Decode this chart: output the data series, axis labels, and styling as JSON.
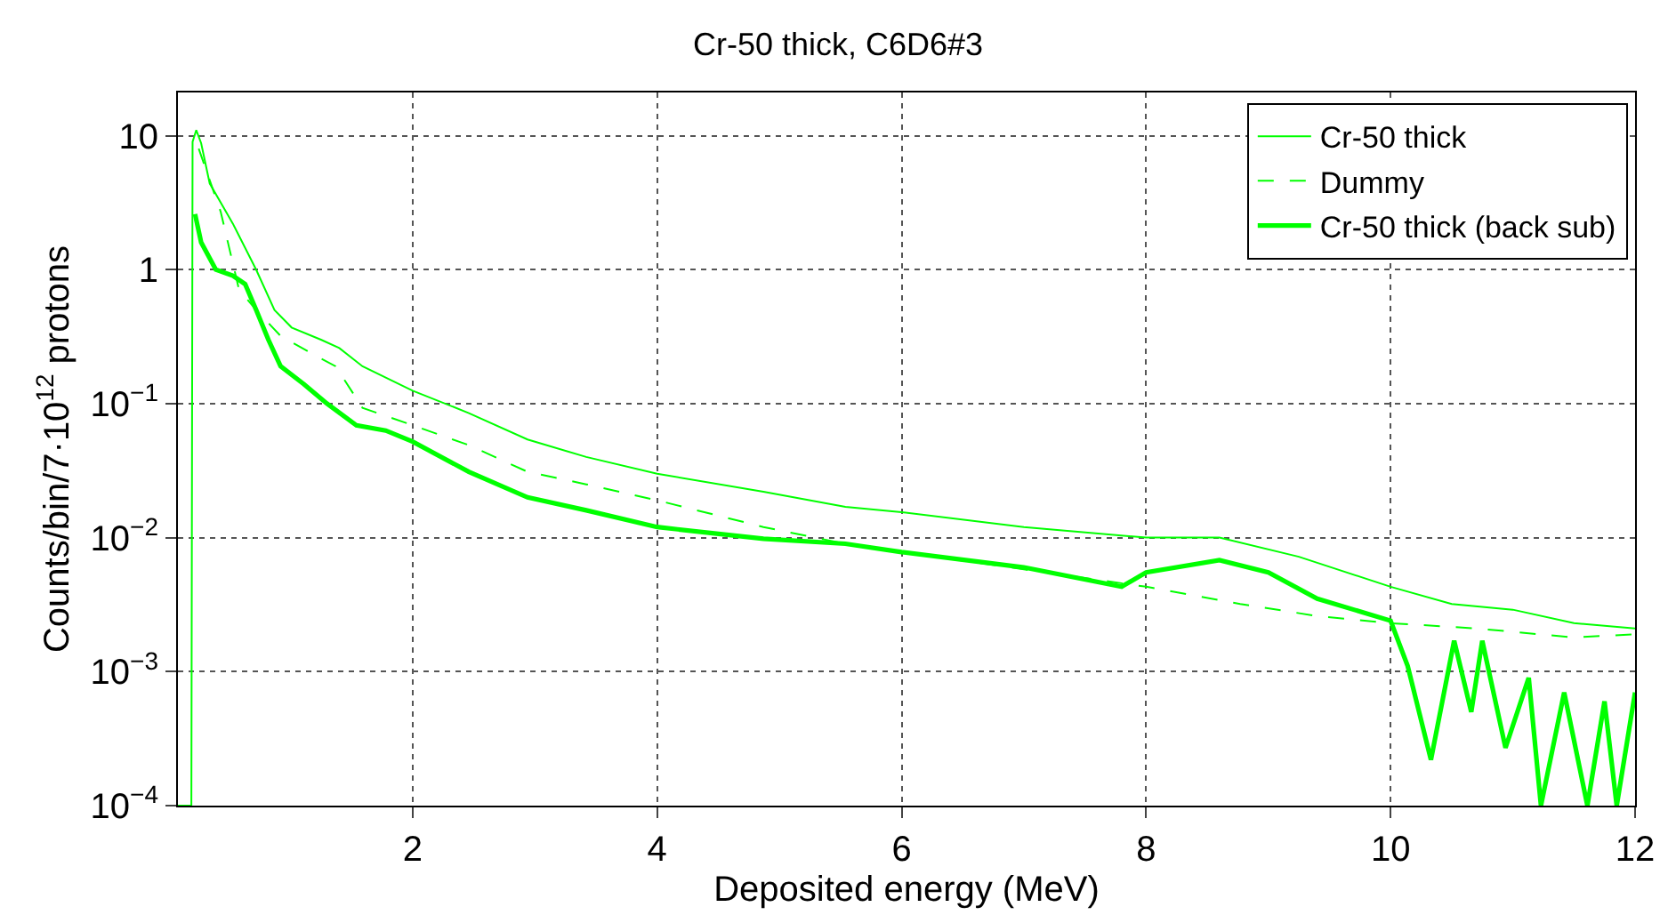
{
  "chart_data": {
    "type": "line",
    "title": "Cr-50 thick, C6D6#3",
    "xlabel": "Deposited energy (MeV)",
    "ylabel": "Counts/bin/7·10$^{12}$ protons",
    "log": "y",
    "grid": true,
    "legend": "top right",
    "marker": "none",
    "xlim": [
      0.08,
      12
    ],
    "xticks": [
      2,
      4,
      6,
      8,
      10,
      12
    ],
    "ylim": [
      0.0001,
      21
    ],
    "yticks": [
      {
        "value": 0.0001,
        "label": "10$^{−4}$"
      },
      {
        "value": 0.001,
        "label": "10$^{−3}$"
      },
      {
        "value": 0.01,
        "label": "10$^{−2}$"
      },
      {
        "value": 0.1,
        "label": "10$^{−1}$"
      },
      1,
      10
    ],
    "series": [
      {
        "name": "Cr-50 thick",
        "color": "#00ff00",
        "line_style": "solid",
        "x": [
          0.08,
          0.19,
          0.2,
          0.23,
          0.27,
          0.34,
          0.53,
          0.72,
          0.87,
          1.01,
          1.25,
          1.4,
          1.59,
          2.0,
          2.46,
          2.94,
          3.42,
          4.0,
          4.87,
          5.54,
          6.0,
          7.0,
          8.0,
          8.6,
          9.25,
          10.0,
          10.5,
          11.0,
          11.5,
          12.0
        ],
        "values": [
          0.0001,
          0.0001,
          9,
          11,
          8.8,
          4.4,
          2.2,
          1.0,
          0.5,
          0.37,
          0.3,
          0.26,
          0.19,
          0.125,
          0.085,
          0.054,
          0.04,
          0.03,
          0.022,
          0.017,
          0.0155,
          0.012,
          0.01,
          0.01,
          0.0072,
          0.0043,
          0.0032,
          0.0029,
          0.0023,
          0.0021
        ]
      },
      {
        "name": "Dummy",
        "color": "#00ff00",
        "line_style": "dashed",
        "x": [
          0.25,
          0.43,
          0.58,
          0.72,
          0.92,
          1.2,
          1.37,
          1.59,
          2.0,
          2.46,
          2.94,
          3.42,
          4.0,
          4.87,
          5.54,
          6.0,
          7.0,
          8.0,
          8.77,
          9.4,
          10.0,
          10.7,
          11.5,
          12.0
        ],
        "values": [
          8,
          2.7,
          0.71,
          0.5,
          0.32,
          0.23,
          0.19,
          0.093,
          0.069,
          0.049,
          0.031,
          0.025,
          0.019,
          0.012,
          0.009,
          0.0078,
          0.0058,
          0.0043,
          0.0032,
          0.0026,
          0.0023,
          0.0021,
          0.0018,
          0.0019
        ]
      },
      {
        "name": "Cr-50 thick (back sub)",
        "color": "#00ff00",
        "line_style": "solid",
        "x": [
          0.22,
          0.27,
          0.39,
          0.53,
          0.63,
          0.72,
          0.82,
          0.92,
          1.11,
          1.3,
          1.54,
          1.78,
          2.0,
          2.46,
          2.94,
          3.42,
          4.0,
          4.87,
          5.54,
          6.0,
          7.0,
          7.8,
          8.0,
          8.6,
          9.0,
          9.4,
          10.0,
          10.14,
          10.33,
          10.52,
          10.66,
          10.75,
          10.94,
          11.13,
          11.23,
          11.42,
          11.61,
          11.75,
          11.85,
          12.0
        ],
        "values": [
          2.6,
          1.6,
          1.0,
          0.9,
          0.78,
          0.5,
          0.3,
          0.19,
          0.14,
          0.1,
          0.069,
          0.063,
          0.052,
          0.031,
          0.02,
          0.016,
          0.012,
          0.0098,
          0.009,
          0.0078,
          0.006,
          0.0043,
          0.0055,
          0.0068,
          0.0055,
          0.0035,
          0.0024,
          0.0011,
          0.00022,
          0.0017,
          0.0005,
          0.0017,
          0.00027,
          0.0009,
          0.0001,
          0.0007,
          0.0001,
          0.0006,
          0.0001,
          0.0007
        ]
      }
    ]
  }
}
